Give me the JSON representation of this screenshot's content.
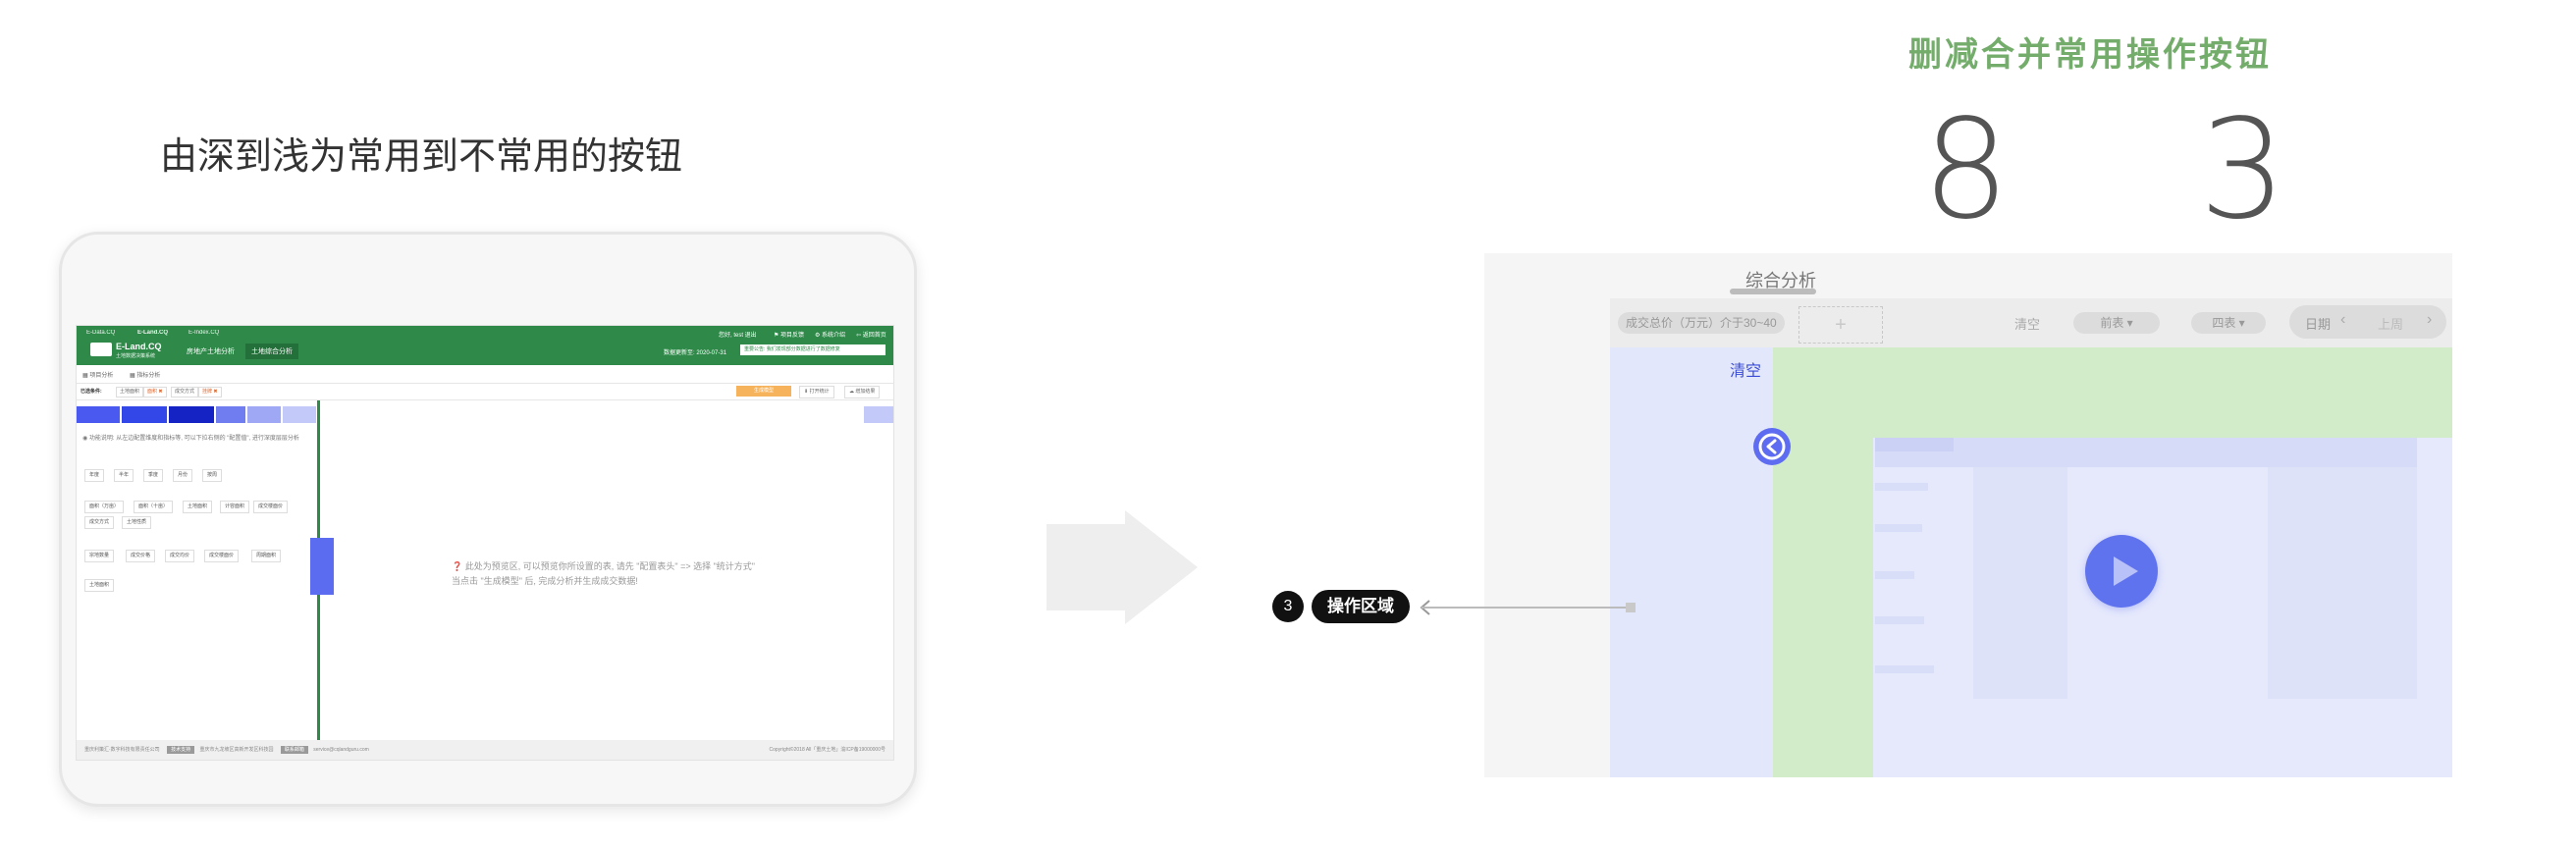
{
  "left": {
    "heading": "由深到浅为常用到不常用的按钮",
    "screen": {
      "topbar": {
        "tabs": [
          "E-Data.CQ",
          "E-Land.CQ",
          "E-Index.CQ"
        ],
        "right_links": [
          "您好, test 退出",
          "⚑ 项目反馈",
          "⚙ 系统介绍",
          "⇦ 返回首页"
        ],
        "logo_title": "E-Land.CQ",
        "logo_subtitle": "土地数据决策系统",
        "nav": [
          "房地产土地分析",
          "土地综合分析"
        ],
        "date": "数据更新至: 2020-07-31",
        "notice": "重要公告: 我们发现部分数据进行了数据修复"
      },
      "subbar": [
        "▦ 项目分析",
        "▦ 指标分析"
      ],
      "filterbar": {
        "label": "已选条件:",
        "chips": [
          "土地面积",
          "面积 ✖",
          "成交方式",
          "挂牌 ✖"
        ],
        "buttons": [
          "生成模型",
          "⬇ 打开统计",
          "☁ 增加结果"
        ]
      },
      "left_panel": {
        "tip": "◉ 功能说明: 从左边配置维度和指标等, 可以下拉右侧的 \"配置值\", 进行深度层层分析",
        "group1": [
          "年度",
          "半年",
          "季度",
          "月份",
          "按周"
        ],
        "group2": [
          "面积（万亩）",
          "面积（十亩）",
          "土地面积",
          "计容面积",
          "成交楼面价",
          "成交方式",
          "土地性质"
        ],
        "group3": [
          "宗地数量",
          "成交价格",
          "成交均价",
          "成交楼面价",
          "周期面积",
          "土地面积"
        ]
      },
      "hint_line1": "❓ 此处为预览区, 可以预览你所设置的表, 请先 \"配置表头\" => 选择 \"统计方式\"",
      "hint_line2": "当点击 \"生成模型\" 后, 完成分析并生成成交数据!",
      "footer_left": "重庆利策汇·数字科技有限责任公司",
      "footer_tag1": "技术支持",
      "footer_mid": "重庆市九龙坡区高新开发区科技园",
      "footer_tag2": "联系邮箱",
      "footer_email": "service@cqlandguru.com",
      "footer_right": "Copyright©2018 All「重庆土地」渝ICP备19000000号"
    }
  },
  "right": {
    "title": "删减合并常用操作按钮",
    "count_before": "8",
    "count_after": "3",
    "tab_label": "综合分析",
    "filter_chip": "成交总价（万元）介于30~40",
    "add_symbol": "+",
    "clear_top": "清空",
    "select1": "前表",
    "select2": "四表",
    "pager_label": "日期",
    "pager_prev_label": "上周",
    "clear_label": "清空",
    "operation_num": "3",
    "operation_label": "操作区域"
  },
  "colors": {
    "brand_green": "#2f8a4a",
    "accent_blue": "#5d6cf0",
    "title_green": "#74ad6b",
    "light_green": "#d2ecca",
    "light_blue": "#e3e7fb"
  }
}
